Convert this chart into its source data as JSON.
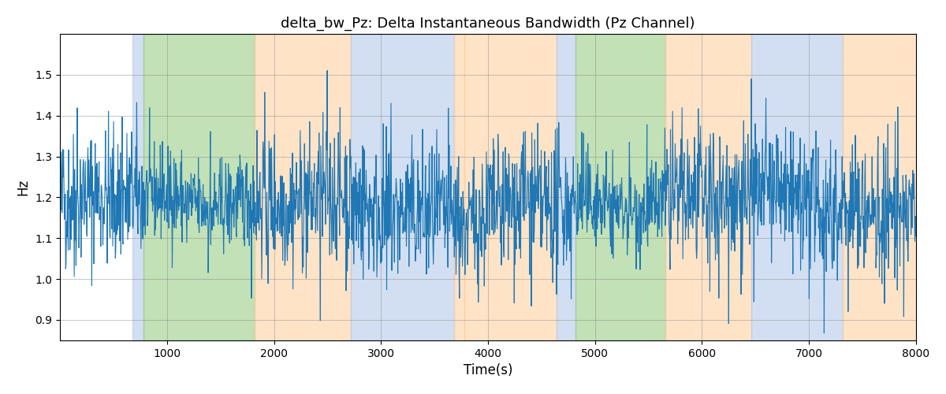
{
  "title": "delta_bw_Pz: Delta Instantaneous Bandwidth (Pz Channel)",
  "xlabel": "Time(s)",
  "ylabel": "Hz",
  "xlim": [
    0,
    8000
  ],
  "ylim": [
    0.85,
    1.6
  ],
  "yticks": [
    0.9,
    1.0,
    1.1,
    1.2,
    1.3,
    1.4,
    1.5
  ],
  "xticks": [
    1000,
    2000,
    3000,
    4000,
    5000,
    6000,
    7000,
    8000
  ],
  "line_color": "#1f77b4",
  "line_width": 0.8,
  "background_color": "#ffffff",
  "colored_bands": [
    {
      "xmin": 680,
      "xmax": 780,
      "color": "#aec6e8",
      "alpha": 0.55
    },
    {
      "xmin": 780,
      "xmax": 1820,
      "color": "#90c97a",
      "alpha": 0.55
    },
    {
      "xmin": 1820,
      "xmax": 2720,
      "color": "#ffcc99",
      "alpha": 0.55
    },
    {
      "xmin": 2720,
      "xmax": 3680,
      "color": "#aec6e8",
      "alpha": 0.55
    },
    {
      "xmin": 3680,
      "xmax": 3780,
      "color": "#ffcc99",
      "alpha": 0.55
    },
    {
      "xmin": 3780,
      "xmax": 4640,
      "color": "#ffcc99",
      "alpha": 0.55
    },
    {
      "xmin": 4640,
      "xmax": 4820,
      "color": "#aec6e8",
      "alpha": 0.55
    },
    {
      "xmin": 4820,
      "xmax": 5660,
      "color": "#90c97a",
      "alpha": 0.55
    },
    {
      "xmin": 5660,
      "xmax": 6460,
      "color": "#ffcc99",
      "alpha": 0.55
    },
    {
      "xmin": 6460,
      "xmax": 7320,
      "color": "#aec6e8",
      "alpha": 0.55
    },
    {
      "xmin": 7320,
      "xmax": 8000,
      "color": "#ffcc99",
      "alpha": 0.55
    }
  ],
  "seed": 42,
  "n_points": 2000,
  "signal_mean": 1.18,
  "signal_std": 0.085
}
